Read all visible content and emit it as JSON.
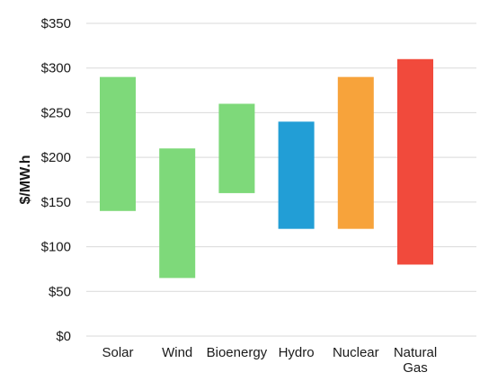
{
  "chart_data": {
    "type": "bar",
    "subtype": "floating-range",
    "title": "",
    "xlabel": "",
    "ylabel": "$/MW.h",
    "ylim": [
      0,
      350
    ],
    "yticks": [
      0,
      50,
      100,
      150,
      200,
      250,
      300,
      350
    ],
    "ytick_labels": [
      "$0",
      "$50",
      "$100",
      "$150",
      "$200",
      "$250",
      "$300",
      "$350"
    ],
    "grid": true,
    "legend": "none",
    "categories": [
      "Solar",
      "Wind",
      "Bioenergy",
      "Hydro",
      "Nuclear",
      "Natural Gas"
    ],
    "category_label_lines": [
      [
        "Solar"
      ],
      [
        "Wind"
      ],
      [
        "Bioenergy"
      ],
      [
        "Hydro"
      ],
      [
        "Nuclear"
      ],
      [
        "Natural",
        "Gas"
      ]
    ],
    "ranges": [
      {
        "category": "Solar",
        "low": 140,
        "high": 290
      },
      {
        "category": "Wind",
        "low": 65,
        "high": 210
      },
      {
        "category": "Bioenergy",
        "low": 160,
        "high": 260
      },
      {
        "category": "Hydro",
        "low": 120,
        "high": 240
      },
      {
        "category": "Nuclear",
        "low": 120,
        "high": 290
      },
      {
        "category": "Natural Gas",
        "low": 80,
        "high": 310
      }
    ],
    "colors": [
      "#7ed97a",
      "#7ed97a",
      "#7ed97a",
      "#229ed6",
      "#f7a33b",
      "#f14a3c"
    ]
  }
}
